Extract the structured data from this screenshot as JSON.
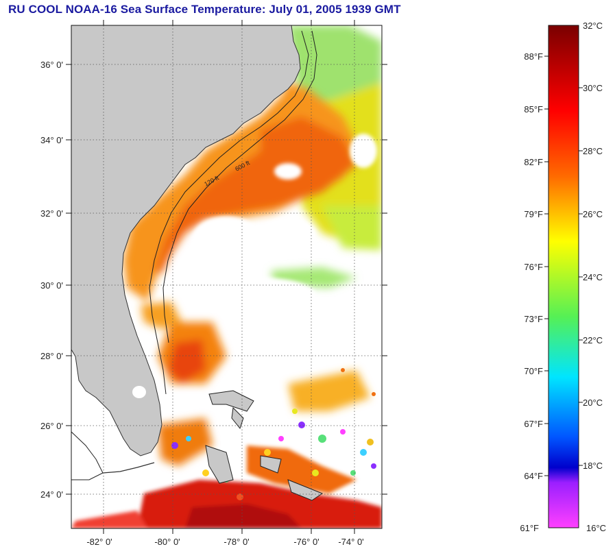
{
  "title": "RU COOL  NOAA-16  Sea Surface Temperature:  July 01, 2005 1939 GMT",
  "map": {
    "lat_labels": [
      "36° 0'",
      "34° 0'",
      "32° 0'",
      "30° 0'",
      "28° 0'",
      "26° 0'",
      "24° 0'"
    ],
    "lon_labels": [
      "-82° 0'",
      "-80° 0'",
      "-78° 0'",
      "-76° 0'",
      "-74° 0'"
    ],
    "contour_labels": [
      "120 ft",
      "600 ft"
    ],
    "colors": {
      "land": "#c8c8c8",
      "cloud": "#ffffff",
      "gulf_stream": "#f26a0e",
      "warm_shelf": "#f79a16",
      "offshore_yellow": "#eae21a",
      "cool_green": "#8ee06a",
      "hot_red": "#c40f0f"
    }
  },
  "colorbar": {
    "celsius_labels": [
      "32°C",
      "30°C",
      "28°C",
      "26°C",
      "24°C",
      "22°C",
      "20°C",
      "18°C",
      "16°C"
    ],
    "fahrenheit_labels": [
      "88°F",
      "85°F",
      "82°F",
      "79°F",
      "76°F",
      "73°F",
      "70°F",
      "67°F",
      "64°F",
      "61°F"
    ],
    "stops": [
      "#7a0000",
      "#ff0000",
      "#ff7a00",
      "#ffff00",
      "#55f055",
      "#00e5ff",
      "#0055ff",
      "#0000cc",
      "#9b1fff",
      "#ff40ff"
    ]
  }
}
